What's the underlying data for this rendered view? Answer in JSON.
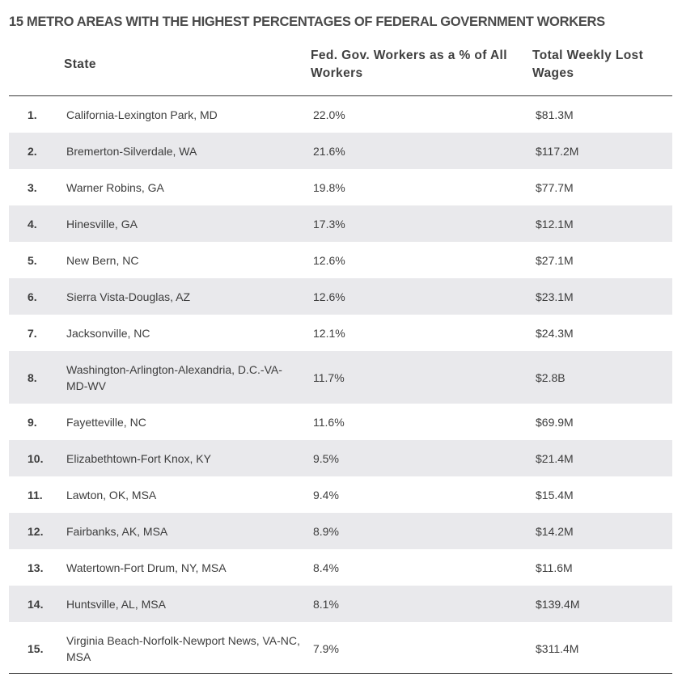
{
  "title": "15 METRO AREAS WITH THE HIGHEST PERCENTAGES OF FEDERAL GOVERNMENT WORKERS",
  "columns": {
    "state": "State",
    "pct": "Fed. Gov. Workers as a % of All Workers",
    "wages": "Total Weekly Lost Wages"
  },
  "rows": [
    {
      "rank": "1.",
      "state": "California-Lexington Park, MD",
      "pct": "22.0%",
      "wages": "$81.3M"
    },
    {
      "rank": "2.",
      "state": "Bremerton-Silverdale, WA",
      "pct": "21.6%",
      "wages": "$117.2M"
    },
    {
      "rank": "3.",
      "state": "Warner Robins, GA",
      "pct": "19.8%",
      "wages": "$77.7M"
    },
    {
      "rank": "4.",
      "state": "Hinesville, GA",
      "pct": "17.3%",
      "wages": "$12.1M"
    },
    {
      "rank": "5.",
      "state": "New Bern, NC",
      "pct": "12.6%",
      "wages": "$27.1M"
    },
    {
      "rank": "6.",
      "state": "Sierra Vista-Douglas, AZ",
      "pct": "12.6%",
      "wages": "$23.1M"
    },
    {
      "rank": "7.",
      "state": "Jacksonville, NC",
      "pct": "12.1%",
      "wages": "$24.3M"
    },
    {
      "rank": "8.",
      "state": "Washington-Arlington-Alexandria, D.C.-VA-MD-WV",
      "pct": "11.7%",
      "wages": "$2.8B"
    },
    {
      "rank": "9.",
      "state": "Fayetteville, NC",
      "pct": "11.6%",
      "wages": "$69.9M"
    },
    {
      "rank": "10.",
      "state": "Elizabethtown-Fort Knox, KY",
      "pct": "9.5%",
      "wages": "$21.4M"
    },
    {
      "rank": "11.",
      "state": "Lawton, OK, MSA",
      "pct": "9.4%",
      "wages": "$15.4M"
    },
    {
      "rank": "12.",
      "state": "Fairbanks, AK, MSA",
      "pct": "8.9%",
      "wages": "$14.2M"
    },
    {
      "rank": "13.",
      "state": "Watertown-Fort Drum, NY, MSA",
      "pct": "8.4%",
      "wages": "$11.6M"
    },
    {
      "rank": "14.",
      "state": "Huntsville, AL, MSA",
      "pct": "8.1%",
      "wages": "$139.4M"
    },
    {
      "rank": "15.",
      "state": "Virginia Beach-Norfolk-Newport News, VA-NC, MSA",
      "pct": "7.9%",
      "wages": "$311.4M"
    }
  ]
}
